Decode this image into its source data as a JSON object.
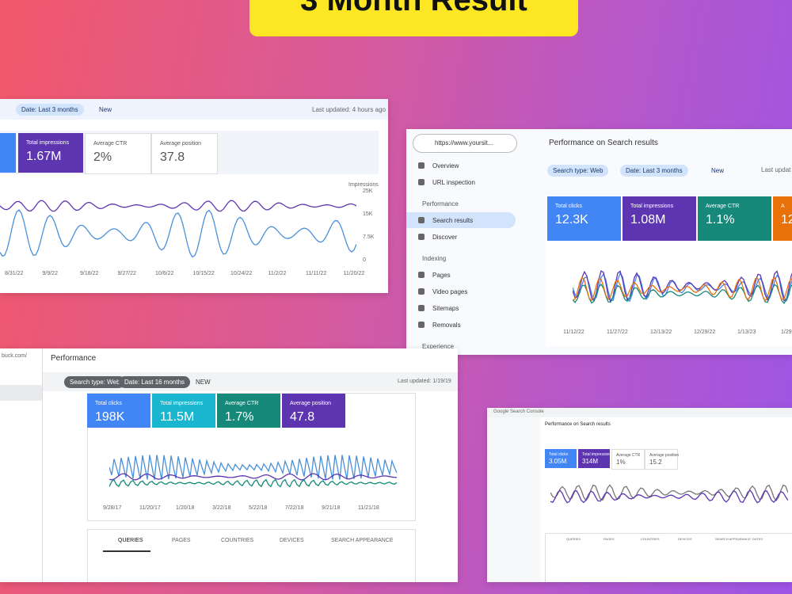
{
  "banner": {
    "title": "3 Month Result"
  },
  "panel1": {
    "filters": [
      "Date: Last 3 months",
      "New"
    ],
    "updated": "Last updated: 4 hours ago",
    "cards": [
      {
        "label": "Total impressions",
        "value": "1.67M"
      },
      {
        "label": "Average CTR",
        "value": "2%"
      },
      {
        "label": "Average position",
        "value": "37.8"
      }
    ],
    "axis_label": "Impressions",
    "yticks": [
      "25K",
      "15K",
      "7.5K",
      "0"
    ],
    "xticks": [
      "8/31/22",
      "9/9/22",
      "9/18/22",
      "9/27/22",
      "10/6/22",
      "10/15/22",
      "10/24/22",
      "11/2/22",
      "11/11/22",
      "11/20/22"
    ]
  },
  "panel2": {
    "url": "https://www.yoursit...",
    "nav": [
      {
        "section": null,
        "items": [
          "Overview",
          "URL inspection"
        ]
      },
      {
        "section": "Performance",
        "items": [
          "Search results",
          "Discover"
        ]
      },
      {
        "section": "Indexing",
        "items": [
          "Pages",
          "Video pages",
          "Sitemaps",
          "Removals"
        ]
      },
      {
        "section": "Experience",
        "items": []
      }
    ],
    "title": "Performance on Search results",
    "filters": [
      "Search type: Web",
      "Date: Last 3 months",
      "New"
    ],
    "updated": "Last updat",
    "cards": [
      {
        "label": "Total clicks",
        "value": "12.3K"
      },
      {
        "label": "Total impressions",
        "value": "1.08M"
      },
      {
        "label": "Average CTR",
        "value": "1.1%"
      },
      {
        "label": "A",
        "value": "12"
      }
    ],
    "xticks": [
      "11/12/22",
      "11/27/22",
      "12/13/22",
      "12/29/22",
      "1/13/23",
      "1/29"
    ]
  },
  "panel3": {
    "site": "buck.com/",
    "title": "Performance",
    "filters": [
      "Search type: Web",
      "Date: Last 16 months",
      "NEW"
    ],
    "updated": "Last updated: 1/19/19",
    "cards": [
      {
        "label": "Total clicks",
        "value": "198K"
      },
      {
        "label": "Total impressions",
        "value": "11.5M"
      },
      {
        "label": "Average CTR",
        "value": "1.7%"
      },
      {
        "label": "Average position",
        "value": "47.8"
      }
    ],
    "xticks": [
      "9/28/17",
      "11/20/17",
      "1/20/18",
      "3/22/18",
      "5/22/18",
      "7/22/18",
      "9/21/18",
      "11/21/18"
    ],
    "tabs": [
      "QUERIES",
      "PAGES",
      "COUNTRIES",
      "DEVICES",
      "SEARCH APPEARANCE"
    ]
  },
  "panel4": {
    "app": "Google Search Console",
    "title": "Performance on Search results",
    "cards": [
      {
        "label": "Total clicks",
        "value": "3.05M"
      },
      {
        "label": "Total impressions",
        "value": "314M"
      },
      {
        "label": "Average CTR",
        "value": "1%"
      },
      {
        "label": "Average position",
        "value": "15.2"
      }
    ],
    "tabs": [
      "QUERIES",
      "PAGES",
      "COUNTRIES",
      "DEVICES",
      "SEARCH APPEARANCE",
      "DATES"
    ]
  }
}
